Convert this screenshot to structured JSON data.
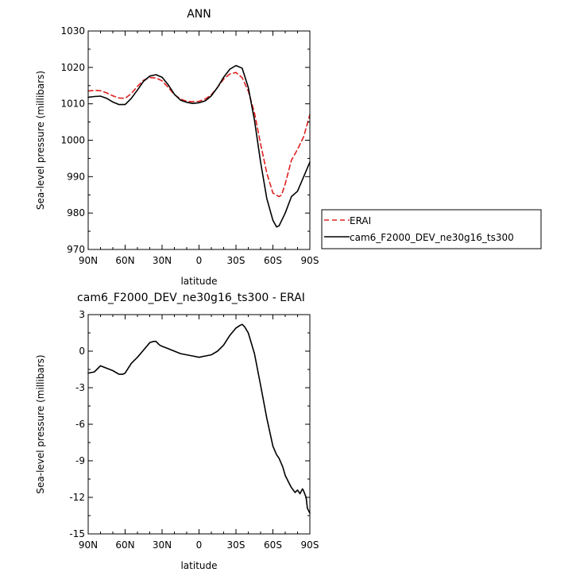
{
  "chart_data": [
    {
      "type": "line",
      "title": "ANN",
      "xlabel": "latitude",
      "ylabel": "Sea-level pressure (millibars)",
      "xlim": [
        90,
        -90
      ],
      "ylim": [
        970,
        1030
      ],
      "x_ticks": [
        90,
        60,
        30,
        0,
        -30,
        -60,
        -90
      ],
      "x_tick_labels": [
        "90N",
        "60N",
        "30N",
        "0",
        "30S",
        "60S",
        "90S"
      ],
      "y_ticks": [
        970,
        980,
        990,
        1000,
        1010,
        1020,
        1030
      ],
      "y_tick_labels": [
        "970",
        "980",
        "990",
        "1000",
        "1010",
        "1020",
        "1030"
      ],
      "legend": "right",
      "series": [
        {
          "name": "ERAI",
          "color": "#e02020",
          "dash": "dashed",
          "x": [
            90,
            85,
            80,
            75,
            70,
            65,
            60,
            55,
            50,
            45,
            40,
            35,
            30,
            25,
            20,
            15,
            10,
            5,
            0,
            -5,
            -10,
            -15,
            -20,
            -25,
            -30,
            -35,
            -40,
            -45,
            -50,
            -55,
            -60,
            -65,
            -67,
            -70,
            -75,
            -80,
            -85,
            -90
          ],
          "y": [
            1013.5,
            1013.7,
            1013.6,
            1013.0,
            1012.2,
            1011.6,
            1011.5,
            1012.8,
            1014.8,
            1016.5,
            1017.2,
            1017.1,
            1016.3,
            1014.5,
            1012.5,
            1011.3,
            1010.7,
            1010.6,
            1010.7,
            1011.3,
            1012.5,
            1014.5,
            1016.8,
            1018.2,
            1018.6,
            1017.2,
            1013.5,
            1007.5,
            999.0,
            991.0,
            985.5,
            984.5,
            985.0,
            988.0,
            994.5,
            997.5,
            1001.0,
            1007.0
          ]
        },
        {
          "name": "cam6_F2000_DEV_ne30g16_ts300",
          "color": "#000000",
          "dash": "solid",
          "x": [
            90,
            85,
            80,
            75,
            70,
            65,
            60,
            55,
            50,
            45,
            40,
            35,
            30,
            25,
            20,
            15,
            10,
            5,
            0,
            -5,
            -10,
            -15,
            -20,
            -25,
            -30,
            -35,
            -40,
            -45,
            -50,
            -55,
            -60,
            -63,
            -65,
            -70,
            -75,
            -80,
            -85,
            -90
          ],
          "y": [
            1011.8,
            1012.0,
            1012.1,
            1011.5,
            1010.5,
            1009.8,
            1009.8,
            1011.5,
            1013.8,
            1016.2,
            1017.6,
            1018.0,
            1017.3,
            1015.2,
            1012.6,
            1011.0,
            1010.4,
            1010.1,
            1010.3,
            1010.8,
            1012.2,
            1014.5,
            1017.3,
            1019.5,
            1020.5,
            1019.8,
            1014.5,
            1005.5,
            994.0,
            984.0,
            978.0,
            976.2,
            976.5,
            980.0,
            984.5,
            986.0,
            990.0,
            994.0
          ]
        }
      ]
    },
    {
      "type": "line",
      "title": "cam6_F2000_DEV_ne30g16_ts300 - ERAI",
      "xlabel": "latitude",
      "ylabel": "Sea-level pressure (millibars)",
      "xlim": [
        90,
        -90
      ],
      "ylim": [
        -15,
        3
      ],
      "x_ticks": [
        90,
        60,
        30,
        0,
        -30,
        -60,
        -90
      ],
      "x_tick_labels": [
        "90N",
        "60N",
        "30N",
        "0",
        "30S",
        "60S",
        "90S"
      ],
      "y_ticks": [
        -15,
        -12,
        -9,
        -6,
        -3,
        0,
        3
      ],
      "y_tick_labels": [
        "-15",
        "-12",
        "-9",
        "-6",
        "-3",
        "0",
        "3"
      ],
      "series": [
        {
          "color": "#000000",
          "dash": "solid",
          "x": [
            90,
            85,
            82,
            80,
            75,
            70,
            65,
            62,
            60,
            55,
            50,
            45,
            40,
            37,
            35,
            33,
            32,
            30,
            25,
            20,
            15,
            10,
            5,
            0,
            -5,
            -10,
            -15,
            -20,
            -25,
            -30,
            -33,
            -35,
            -37,
            -40,
            -45,
            -50,
            -55,
            -60,
            -63,
            -65,
            -68,
            -70,
            -73,
            -75,
            -78,
            -80,
            -82,
            -84,
            -85,
            -87,
            -88,
            -90
          ],
          "y": [
            -1.8,
            -1.7,
            -1.4,
            -1.2,
            -1.4,
            -1.6,
            -1.9,
            -1.9,
            -1.8,
            -1.0,
            -0.5,
            0.1,
            0.7,
            0.8,
            0.8,
            0.6,
            0.5,
            0.4,
            0.2,
            0.0,
            -0.2,
            -0.3,
            -0.4,
            -0.5,
            -0.4,
            -0.3,
            0.0,
            0.5,
            1.3,
            1.9,
            2.1,
            2.2,
            2.0,
            1.5,
            -0.2,
            -2.8,
            -5.5,
            -7.8,
            -8.5,
            -8.8,
            -9.5,
            -10.2,
            -10.8,
            -11.2,
            -11.6,
            -11.4,
            -11.7,
            -11.3,
            -11.5,
            -12.0,
            -12.9,
            -13.3
          ]
        }
      ]
    }
  ]
}
